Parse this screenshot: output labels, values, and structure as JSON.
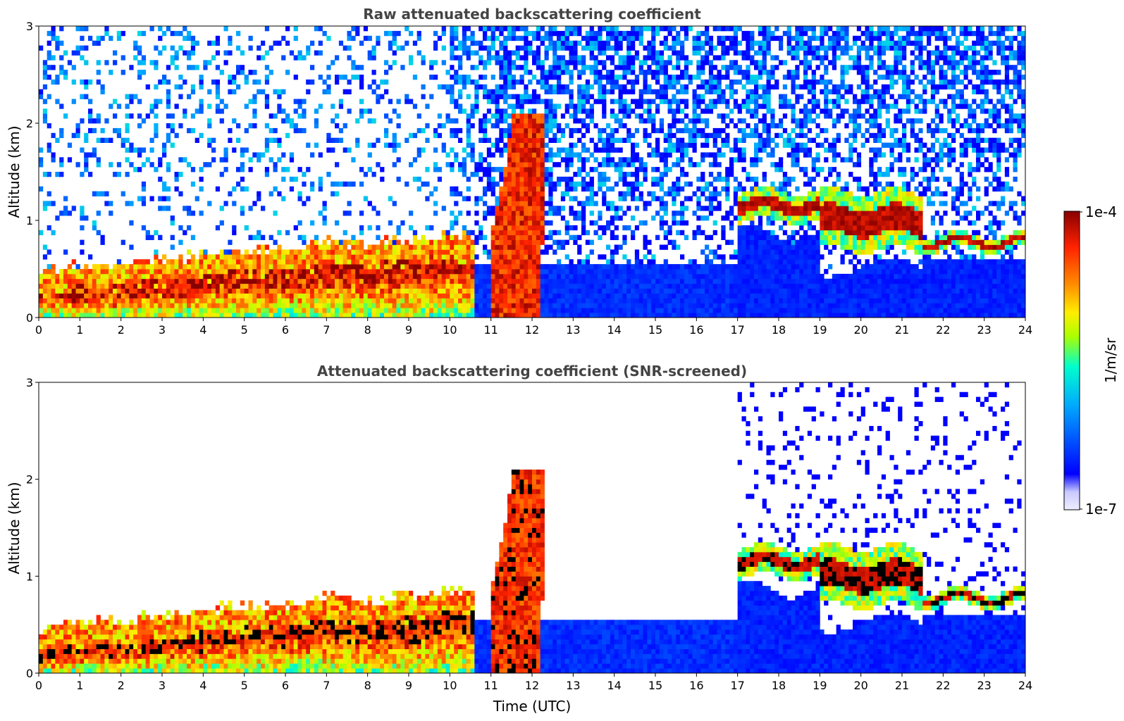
{
  "chart_data": [
    {
      "type": "heatmap",
      "title": "Raw attenuated backscattering coefficient",
      "xlabel": "",
      "ylabel": "Altitude (km)",
      "xlim": [
        0,
        24
      ],
      "ylim": [
        0,
        3
      ],
      "x_ticks": [
        "0",
        "1",
        "2",
        "3",
        "4",
        "5",
        "6",
        "7",
        "8",
        "9",
        "10",
        "11",
        "12",
        "13",
        "14",
        "15",
        "16",
        "17",
        "18",
        "19",
        "20",
        "21",
        "22",
        "23",
        "24"
      ],
      "y_ticks": [
        "0",
        "1",
        "2",
        "3"
      ],
      "boundary_layer_top_km": [
        [
          0,
          0.2
        ],
        [
          1,
          0.3
        ],
        [
          2,
          0.3
        ],
        [
          3,
          0.35
        ],
        [
          4,
          0.4
        ],
        [
          5,
          0.45
        ],
        [
          6,
          0.45
        ],
        [
          7,
          0.55
        ],
        [
          8,
          0.5
        ],
        [
          9,
          0.55
        ],
        [
          10,
          0.6
        ]
      ],
      "cloud_layers": [
        {
          "t_start": 11.0,
          "t_end": 12.3,
          "alt_start_km": 0.0,
          "alt_end_km": 2.1,
          "label": ""
        },
        {
          "t_start": 17.0,
          "t_end": 19.0,
          "alt_start_km": 1.0,
          "alt_end_km": 1.3,
          "label": ""
        },
        {
          "t_start": 19.0,
          "t_end": 21.5,
          "alt_start_km": 0.7,
          "alt_end_km": 1.3,
          "label": ""
        },
        {
          "t_start": 21.5,
          "t_end": 24.0,
          "alt_start_km": 0.7,
          "alt_end_km": 0.85,
          "label": ""
        }
      ]
    },
    {
      "type": "heatmap",
      "title": "Attenuated backscattering coefficient (SNR-screened)",
      "xlabel": "Time (UTC)",
      "ylabel": "Altitude (km)",
      "xlim": [
        0,
        24
      ],
      "ylim": [
        0,
        3
      ],
      "x_ticks": [
        "0",
        "1",
        "2",
        "3",
        "4",
        "5",
        "6",
        "7",
        "8",
        "9",
        "10",
        "11",
        "12",
        "13",
        "14",
        "15",
        "16",
        "17",
        "18",
        "19",
        "20",
        "21",
        "22",
        "23",
        "24"
      ],
      "y_ticks": [
        "0",
        "1",
        "2",
        "3"
      ]
    }
  ],
  "colorbar": {
    "label": "1/m/sr",
    "max_label": "1e-4",
    "min_label": "1e-7",
    "scale": "log",
    "colormap": "jet",
    "colors": [
      "#eeeeff",
      "#0000ff",
      "#00aaff",
      "#00ffcc",
      "#aaff00",
      "#ffee00",
      "#ff8800",
      "#ff2200",
      "#880000"
    ]
  }
}
